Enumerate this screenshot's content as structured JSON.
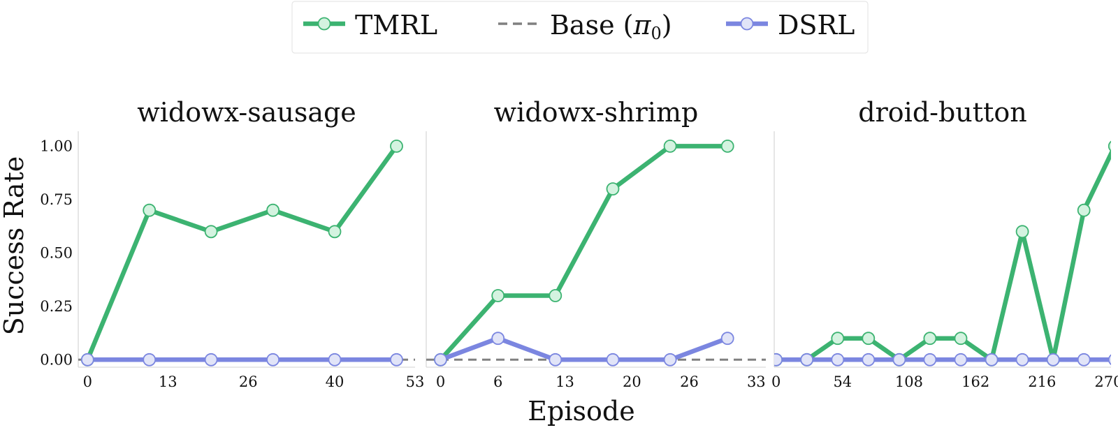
{
  "legend": {
    "items": [
      {
        "label": "TMRL",
        "color": "#3cb371",
        "marker_fill": "#d4f3e0",
        "style": "solid-marker"
      },
      {
        "label": "Base (π₀)",
        "label_main": "Base (",
        "label_pi": "π",
        "label_sub": "0",
        "label_close": ")",
        "color": "#808080",
        "style": "dashed"
      },
      {
        "label": "DSRL",
        "color": "#7b86e0",
        "marker_fill": "#e1e4f8",
        "style": "solid-marker"
      }
    ]
  },
  "ylabel": "Success Rate",
  "xlabel": "Episode",
  "yticks": [
    "0.00",
    "0.25",
    "0.50",
    "0.75",
    "1.00"
  ],
  "chart_data": [
    {
      "type": "line",
      "title": "widowx-sausage",
      "xlim": [
        -1.5,
        53
      ],
      "ylim": [
        -0.035,
        1.07
      ],
      "xticks": [
        0,
        13,
        26,
        40,
        53
      ],
      "base": 0.0,
      "series": [
        {
          "name": "TMRL",
          "x": [
            0,
            10,
            20,
            30,
            40,
            50
          ],
          "y": [
            0.0,
            0.7,
            0.6,
            0.7,
            0.6,
            1.0
          ]
        },
        {
          "name": "DSRL",
          "x": [
            0,
            10,
            20,
            30,
            40,
            50
          ],
          "y": [
            0.0,
            0.0,
            0.0,
            0.0,
            0.0,
            0.0
          ]
        }
      ]
    },
    {
      "type": "line",
      "title": "widowx-shrimp",
      "xlim": [
        -1.5,
        34
      ],
      "ylim": [
        -0.035,
        1.07
      ],
      "xticks": [
        0,
        6,
        13,
        20,
        26,
        33
      ],
      "base": 0.0,
      "series": [
        {
          "name": "TMRL",
          "x": [
            0,
            6,
            12,
            18,
            24,
            30
          ],
          "y": [
            0.0,
            0.3,
            0.3,
            0.8,
            1.0,
            1.0
          ]
        },
        {
          "name": "DSRL",
          "x": [
            0,
            6,
            12,
            18,
            24,
            30
          ],
          "y": [
            0.0,
            0.1,
            0.0,
            0.0,
            0.0,
            0.1
          ]
        }
      ]
    },
    {
      "type": "line",
      "title": "droid-button",
      "xlim": [
        -1.5,
        272
      ],
      "ylim": [
        -0.035,
        1.07
      ],
      "xticks": [
        0,
        54,
        108,
        162,
        216,
        270
      ],
      "base": 0.0,
      "series": [
        {
          "name": "TMRL",
          "x": [
            0,
            25,
            50,
            75,
            100,
            125,
            150,
            175,
            200,
            225,
            250,
            275
          ],
          "y": [
            0.0,
            0.0,
            0.1,
            0.1,
            0.0,
            0.1,
            0.1,
            0.0,
            0.6,
            0.0,
            0.7,
            1.0
          ]
        },
        {
          "name": "DSRL",
          "x": [
            0,
            25,
            50,
            75,
            100,
            125,
            150,
            175,
            200,
            225,
            250,
            275
          ],
          "y": [
            0.0,
            0.0,
            0.0,
            0.0,
            0.0,
            0.0,
            0.0,
            0.0,
            0.0,
            0.0,
            0.0,
            0.0
          ]
        }
      ]
    }
  ]
}
